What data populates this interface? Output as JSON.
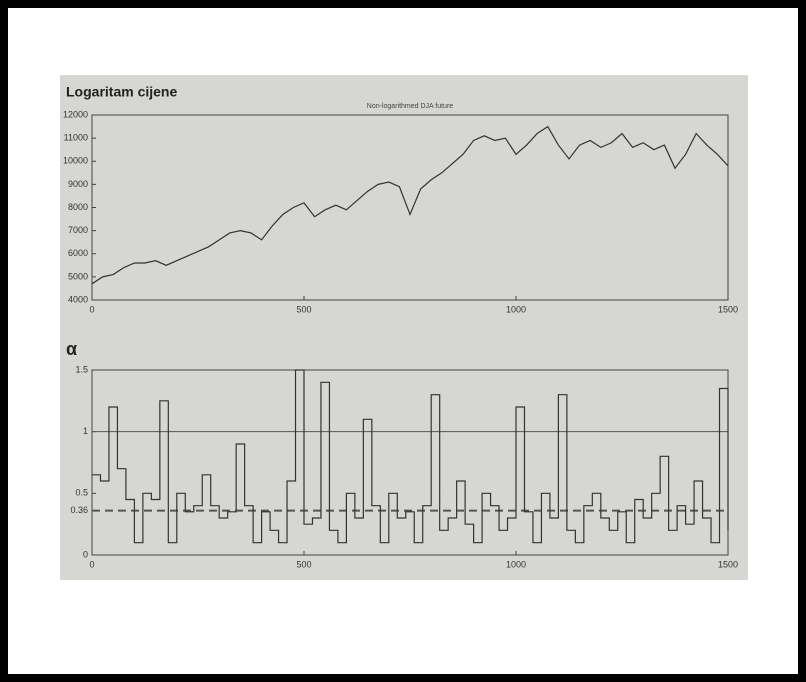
{
  "chart_data": [
    {
      "type": "line",
      "title": "Logaritam cijene",
      "subtitle": "Non-logarithmed DJA future",
      "x": [
        0,
        25,
        50,
        75,
        100,
        125,
        150,
        175,
        200,
        225,
        250,
        275,
        300,
        325,
        350,
        375,
        400,
        425,
        450,
        475,
        500,
        525,
        550,
        575,
        600,
        625,
        650,
        675,
        700,
        725,
        750,
        775,
        800,
        825,
        850,
        875,
        900,
        925,
        950,
        975,
        1000,
        1025,
        1050,
        1075,
        1100,
        1125,
        1150,
        1175,
        1200,
        1225,
        1250,
        1275,
        1300,
        1325,
        1350,
        1375,
        1400,
        1425,
        1450,
        1475,
        1500
      ],
      "series": [
        {
          "name": "DJA",
          "color": "#333333",
          "values": [
            4700,
            5000,
            5100,
            5400,
            5600,
            5600,
            5700,
            5500,
            5700,
            5900,
            6100,
            6300,
            6600,
            6900,
            7000,
            6900,
            6600,
            7200,
            7700,
            8000,
            8200,
            7600,
            7900,
            8100,
            7900,
            8300,
            8700,
            9000,
            9100,
            8900,
            7700,
            8800,
            9200,
            9500,
            9900,
            10300,
            10900,
            11100,
            10900,
            11000,
            10300,
            10700,
            11200,
            11500,
            10700,
            10100,
            10700,
            10900,
            10600,
            10800,
            11200,
            10600,
            10800,
            10500,
            10700,
            9700,
            10300,
            11200,
            10700,
            10300,
            9800
          ]
        }
      ],
      "xlim": [
        0,
        1500
      ],
      "xticks": [
        0,
        500,
        1000,
        1500
      ],
      "ylim": [
        4000,
        12000
      ],
      "yticks": [
        4000,
        5000,
        6000,
        7000,
        8000,
        9000,
        10000,
        11000,
        12000
      ]
    },
    {
      "type": "step",
      "title": "α",
      "x": [
        0,
        20,
        40,
        60,
        80,
        100,
        120,
        140,
        160,
        180,
        200,
        220,
        240,
        260,
        280,
        300,
        320,
        340,
        360,
        380,
        400,
        420,
        440,
        460,
        480,
        500,
        520,
        540,
        560,
        580,
        600,
        620,
        640,
        660,
        680,
        700,
        720,
        740,
        760,
        780,
        800,
        820,
        840,
        860,
        880,
        900,
        920,
        940,
        960,
        980,
        1000,
        1020,
        1040,
        1060,
        1080,
        1100,
        1120,
        1140,
        1160,
        1180,
        1200,
        1220,
        1240,
        1260,
        1280,
        1300,
        1320,
        1340,
        1360,
        1380,
        1400,
        1420,
        1440,
        1460,
        1480,
        1500
      ],
      "series": [
        {
          "name": "alpha",
          "color": "#333333",
          "values": [
            0.65,
            0.6,
            1.2,
            0.7,
            0.45,
            0.1,
            0.5,
            0.45,
            1.25,
            0.1,
            0.5,
            0.35,
            0.4,
            0.65,
            0.4,
            0.3,
            0.35,
            0.9,
            0.4,
            0.1,
            0.35,
            0.2,
            0.1,
            0.6,
            1.5,
            0.25,
            0.3,
            1.4,
            0.2,
            0.1,
            0.5,
            0.3,
            1.1,
            0.4,
            0.1,
            0.5,
            0.3,
            0.35,
            0.1,
            0.4,
            1.3,
            0.2,
            0.3,
            0.6,
            0.25,
            0.1,
            0.5,
            0.4,
            0.2,
            0.3,
            1.2,
            0.35,
            0.1,
            0.5,
            0.3,
            1.3,
            0.2,
            0.1,
            0.4,
            0.5,
            0.3,
            0.2,
            0.35,
            0.1,
            0.45,
            0.3,
            0.5,
            0.8,
            0.2,
            0.4,
            0.25,
            0.6,
            0.3,
            0.1,
            1.35,
            0.2
          ]
        }
      ],
      "hlines": [
        {
          "value": 1,
          "style": "solid"
        },
        {
          "value": 0.36,
          "style": "dashed"
        }
      ],
      "xlim": [
        0,
        1500
      ],
      "xticks": [
        0,
        500,
        1000,
        1500
      ],
      "ylim": [
        0,
        1.5
      ],
      "yticks": [
        0,
        0.36,
        0.5,
        1,
        1.5
      ]
    }
  ]
}
